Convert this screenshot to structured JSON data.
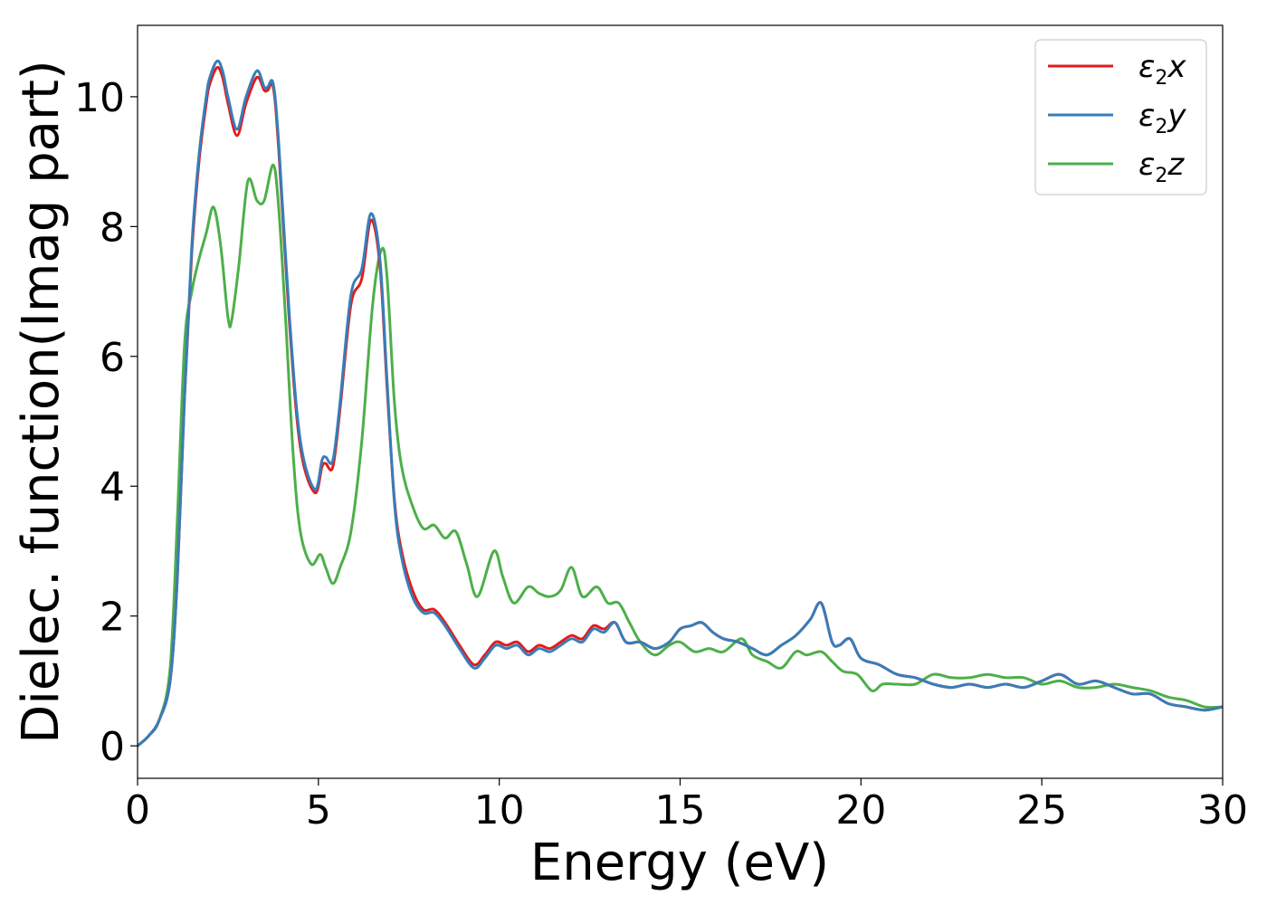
{
  "chart_data": {
    "type": "line",
    "title": "",
    "xlabel": "Energy (eV)",
    "ylabel": "Dielec. function(Imag part)",
    "xlim": [
      0,
      30
    ],
    "ylim": [
      -0.5,
      11.1
    ],
    "xticks": [
      0,
      5,
      10,
      15,
      20,
      25,
      30
    ],
    "yticks": [
      0,
      2,
      4,
      6,
      8,
      10
    ],
    "grid": false,
    "legend_position": "top-right",
    "legend": [
      {
        "base": "ε",
        "sub": "2",
        "var": "x"
      },
      {
        "base": "ε",
        "sub": "2",
        "var": "y"
      },
      {
        "base": "ε",
        "sub": "2",
        "var": "z"
      }
    ],
    "series": [
      {
        "name": "ε2x",
        "color": "#e41a1c",
        "x": [
          0,
          0.3,
          0.6,
          0.9,
          1.1,
          1.3,
          1.5,
          1.7,
          1.9,
          2.0,
          2.2,
          2.35,
          2.5,
          2.75,
          3.0,
          3.3,
          3.5,
          3.6,
          3.75,
          3.9,
          4.2,
          4.5,
          4.9,
          5.1,
          5.2,
          5.4,
          5.6,
          5.9,
          6.2,
          6.45,
          6.7,
          6.9,
          7.1,
          7.3,
          7.6,
          7.9,
          8.2,
          8.5,
          8.9,
          9.3,
          9.6,
          9.9,
          10.2,
          10.5,
          10.8,
          11.1,
          11.4,
          11.7,
          12.0,
          12.3,
          12.6,
          12.9,
          13.2,
          13.5,
          13.9,
          14.3,
          14.7,
          15.0,
          15.3,
          15.6,
          15.9,
          16.2,
          16.6,
          17.0,
          17.4,
          17.8,
          18.2,
          18.6,
          18.9,
          19.2,
          19.4,
          19.7,
          20.0,
          20.5,
          21.0,
          21.5,
          22.0,
          22.5,
          23.0,
          23.5,
          24.0,
          24.5,
          25.0,
          25.5,
          26.0,
          26.5,
          27.0,
          27.5,
          28.0,
          28.5,
          29.0,
          29.5,
          30.0
        ],
        "y": [
          0,
          0.15,
          0.4,
          1.0,
          2.6,
          5.4,
          7.6,
          9.0,
          9.9,
          10.2,
          10.45,
          10.3,
          9.9,
          9.4,
          9.9,
          10.3,
          10.1,
          10.1,
          10.15,
          9.2,
          6.5,
          4.6,
          3.9,
          4.3,
          4.35,
          4.3,
          5.2,
          6.8,
          7.2,
          8.1,
          7.4,
          5.5,
          3.8,
          3.0,
          2.4,
          2.1,
          2.1,
          1.9,
          1.55,
          1.25,
          1.4,
          1.6,
          1.55,
          1.6,
          1.45,
          1.55,
          1.5,
          1.6,
          1.7,
          1.65,
          1.85,
          1.8,
          1.9,
          1.6,
          1.6,
          1.5,
          1.6,
          1.8,
          1.85,
          1.9,
          1.75,
          1.65,
          1.6,
          1.5,
          1.4,
          1.55,
          1.7,
          1.95,
          2.2,
          1.6,
          1.55,
          1.65,
          1.35,
          1.25,
          1.1,
          1.05,
          0.95,
          0.9,
          0.95,
          0.9,
          0.95,
          0.9,
          1.0,
          1.1,
          0.95,
          1.0,
          0.9,
          0.8,
          0.8,
          0.65,
          0.6,
          0.55,
          0.6
        ]
      },
      {
        "name": "ε2y",
        "color": "#377eb8",
        "x": [
          0,
          0.3,
          0.6,
          0.9,
          1.1,
          1.3,
          1.5,
          1.7,
          1.9,
          2.0,
          2.2,
          2.35,
          2.5,
          2.75,
          3.0,
          3.3,
          3.5,
          3.6,
          3.75,
          3.9,
          4.2,
          4.5,
          4.9,
          5.1,
          5.2,
          5.4,
          5.6,
          5.9,
          6.2,
          6.45,
          6.7,
          6.9,
          7.1,
          7.3,
          7.6,
          7.9,
          8.2,
          8.5,
          8.9,
          9.3,
          9.6,
          9.9,
          10.2,
          10.5,
          10.8,
          11.1,
          11.4,
          11.7,
          12.0,
          12.3,
          12.6,
          12.9,
          13.2,
          13.5,
          13.9,
          14.3,
          14.7,
          15.0,
          15.3,
          15.6,
          15.9,
          16.2,
          16.6,
          17.0,
          17.4,
          17.8,
          18.2,
          18.6,
          18.9,
          19.2,
          19.4,
          19.7,
          20.0,
          20.5,
          21.0,
          21.5,
          22.0,
          22.5,
          23.0,
          23.5,
          24.0,
          24.5,
          25.0,
          25.5,
          26.0,
          26.5,
          27.0,
          27.5,
          28.0,
          28.5,
          29.0,
          29.5,
          30.0
        ],
        "y": [
          0,
          0.15,
          0.4,
          1.0,
          2.6,
          5.4,
          7.7,
          9.1,
          10.0,
          10.3,
          10.55,
          10.4,
          10.0,
          9.5,
          10.0,
          10.4,
          10.15,
          10.15,
          10.2,
          9.3,
          6.6,
          4.7,
          3.95,
          4.4,
          4.45,
          4.4,
          5.3,
          6.95,
          7.35,
          8.2,
          7.5,
          5.6,
          3.75,
          2.9,
          2.3,
          2.05,
          2.05,
          1.85,
          1.5,
          1.2,
          1.35,
          1.55,
          1.5,
          1.55,
          1.4,
          1.5,
          1.45,
          1.55,
          1.65,
          1.6,
          1.8,
          1.75,
          1.9,
          1.6,
          1.6,
          1.5,
          1.6,
          1.8,
          1.85,
          1.9,
          1.75,
          1.65,
          1.6,
          1.5,
          1.4,
          1.55,
          1.7,
          1.95,
          2.2,
          1.6,
          1.55,
          1.65,
          1.35,
          1.25,
          1.1,
          1.05,
          0.95,
          0.9,
          0.95,
          0.9,
          0.95,
          0.9,
          1.0,
          1.1,
          0.95,
          1.0,
          0.9,
          0.8,
          0.8,
          0.65,
          0.6,
          0.55,
          0.6
        ]
      },
      {
        "name": "ε2z",
        "color": "#4daf4a",
        "x": [
          0,
          0.3,
          0.6,
          0.9,
          1.1,
          1.3,
          1.5,
          1.7,
          1.9,
          2.1,
          2.3,
          2.5,
          2.6,
          2.8,
          3.05,
          3.3,
          3.5,
          3.75,
          3.9,
          4.1,
          4.3,
          4.5,
          4.8,
          5.05,
          5.2,
          5.4,
          5.6,
          5.9,
          6.2,
          6.5,
          6.75,
          6.9,
          7.1,
          7.3,
          7.6,
          7.9,
          8.2,
          8.5,
          8.8,
          9.1,
          9.4,
          9.85,
          10.1,
          10.4,
          10.8,
          11.1,
          11.4,
          11.7,
          12.0,
          12.3,
          12.7,
          13.0,
          13.3,
          13.6,
          13.9,
          14.3,
          14.7,
          15.0,
          15.4,
          15.8,
          16.2,
          16.7,
          17.0,
          17.4,
          17.8,
          18.2,
          18.5,
          18.9,
          19.2,
          19.5,
          19.9,
          20.3,
          20.6,
          21.0,
          21.5,
          22.0,
          22.5,
          23.0,
          23.5,
          24.0,
          24.5,
          25.0,
          25.5,
          26.0,
          26.5,
          27.0,
          27.5,
          28.0,
          28.5,
          29.0,
          29.5,
          30.0
        ],
        "y": [
          0,
          0.15,
          0.4,
          1.2,
          3.5,
          6.2,
          7.0,
          7.5,
          7.9,
          8.3,
          7.7,
          6.6,
          6.55,
          7.4,
          8.7,
          8.4,
          8.4,
          8.95,
          8.3,
          6.5,
          4.5,
          3.3,
          2.8,
          2.95,
          2.75,
          2.5,
          2.75,
          3.3,
          4.7,
          6.8,
          7.65,
          7.2,
          5.3,
          4.3,
          3.7,
          3.35,
          3.4,
          3.2,
          3.3,
          2.8,
          2.3,
          3.0,
          2.6,
          2.2,
          2.45,
          2.35,
          2.3,
          2.4,
          2.75,
          2.3,
          2.45,
          2.2,
          2.2,
          1.9,
          1.6,
          1.4,
          1.55,
          1.6,
          1.45,
          1.5,
          1.45,
          1.65,
          1.4,
          1.3,
          1.2,
          1.45,
          1.4,
          1.45,
          1.3,
          1.15,
          1.1,
          0.85,
          0.95,
          0.95,
          0.95,
          1.1,
          1.05,
          1.05,
          1.1,
          1.05,
          1.05,
          0.95,
          1.0,
          0.9,
          0.9,
          0.95,
          0.9,
          0.85,
          0.75,
          0.7,
          0.6,
          0.6
        ]
      }
    ]
  }
}
